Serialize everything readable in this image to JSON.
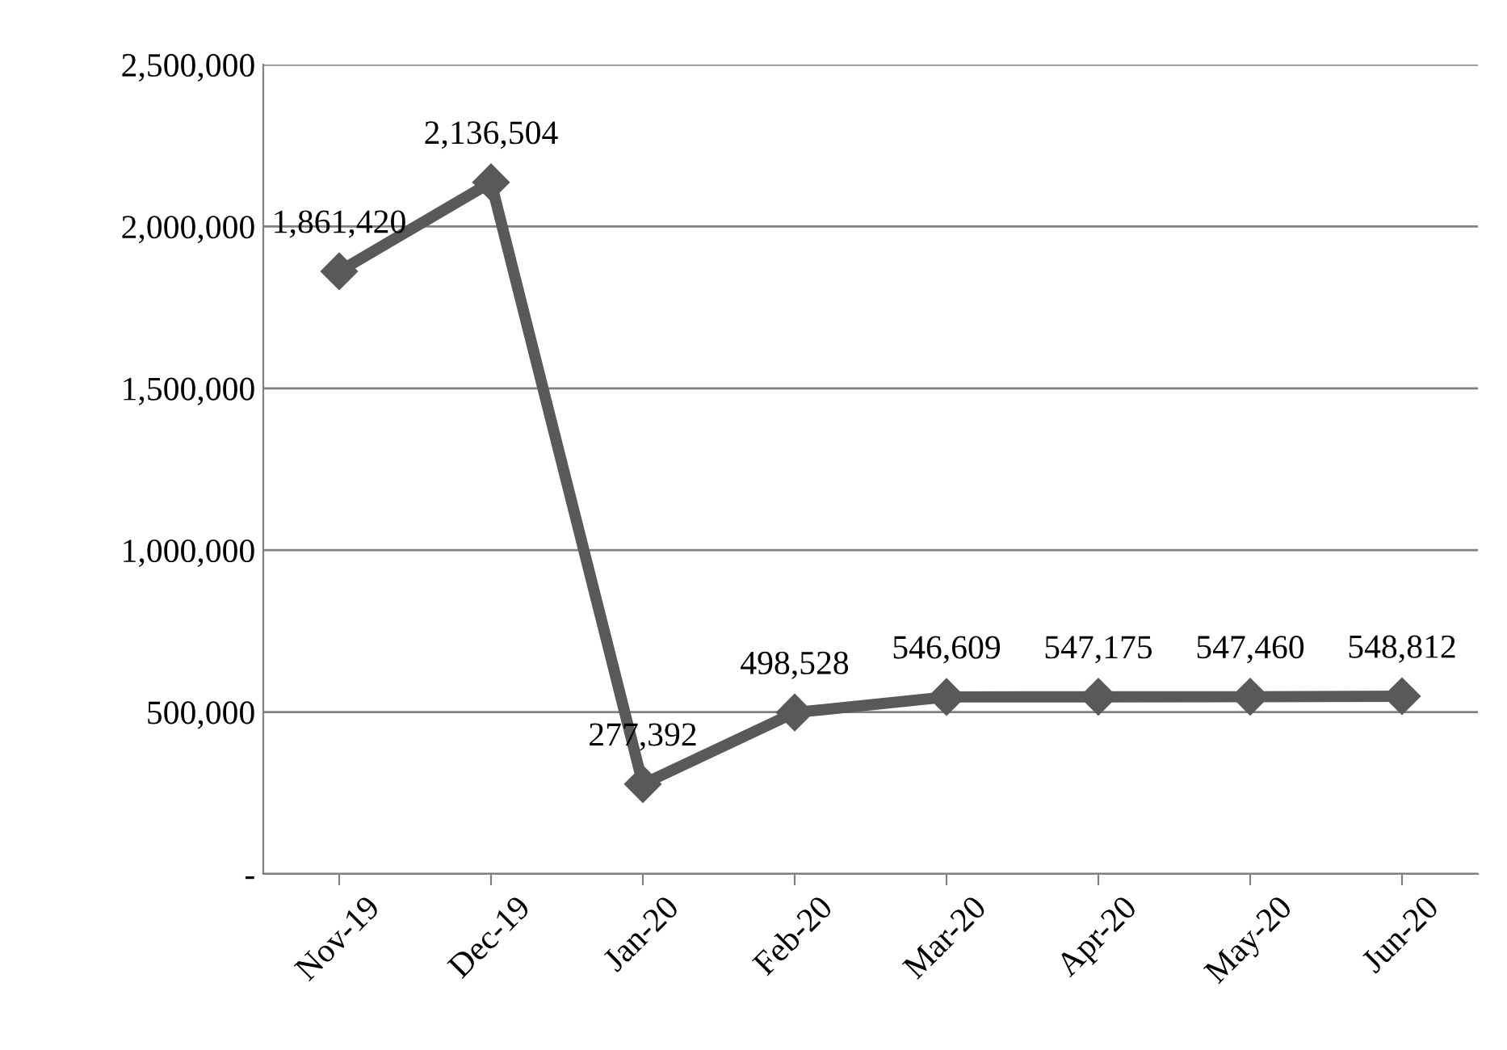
{
  "chart_data": {
    "type": "line",
    "categories": [
      "Nov-19",
      "Dec-19",
      "Jan-20",
      "Feb-20",
      "Mar-20",
      "Apr-20",
      "May-20",
      "Jun-20"
    ],
    "series": [
      {
        "color": "#595959",
        "values": [
          1861420,
          2136504,
          277392,
          498528,
          546609,
          547175,
          547460,
          548812
        ],
        "value_labels": [
          "1,861,420",
          "2,136,504",
          "277,392",
          "498,528",
          "546,609",
          "547,175",
          "547,460",
          "548,812"
        ]
      }
    ],
    "ylim": [
      0,
      2500000
    ],
    "yticks": [
      {
        "value": 0,
        "label": "-"
      },
      {
        "value": 500000,
        "label": "500,000"
      },
      {
        "value": 1000000,
        "label": "1,000,000"
      },
      {
        "value": 1500000,
        "label": "1,500,000"
      },
      {
        "value": 2000000,
        "label": "2,000,000"
      },
      {
        "value": 2500000,
        "label": "2,500,000"
      }
    ],
    "grid": "y",
    "marker": "diamond",
    "line_style": "solid",
    "legend": false
  }
}
